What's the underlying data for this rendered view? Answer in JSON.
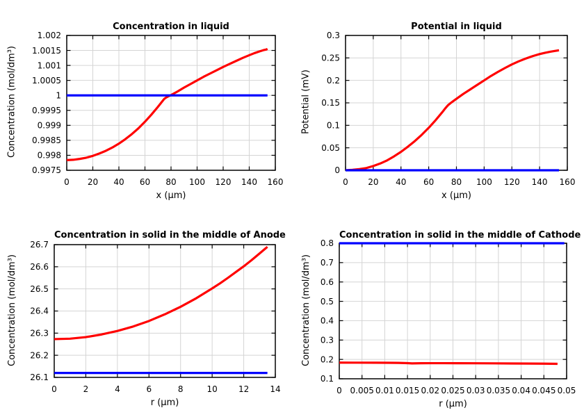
{
  "colors": {
    "background": "#ffffff",
    "frame": "#000000",
    "grid": "#d4d4d4",
    "text": "#000000",
    "series_red": "#ff0000",
    "series_blue": "#0000ff"
  },
  "chart_data": [
    {
      "id": "concentration-in-liquid",
      "type": "line",
      "title": "Concentration in liquid",
      "xlabel": "x (µm)",
      "ylabel": "Concentration (mol/dm³)",
      "xlim": [
        0,
        160
      ],
      "ylim": [
        0.9975,
        1.002
      ],
      "grid": true,
      "legend_position": "none",
      "xticks": {
        "values": [
          0,
          20,
          40,
          60,
          80,
          100,
          120,
          140,
          160
        ],
        "labels": [
          "0",
          "20",
          "40",
          "60",
          "80",
          "100",
          "120",
          "140",
          "160"
        ]
      },
      "yticks": {
        "values": [
          0.9975,
          0.998,
          0.9985,
          0.999,
          0.9995,
          1,
          1.0005,
          1.001,
          1.0015,
          1.002
        ],
        "labels": [
          "0.9975",
          "0.998",
          "0.9985",
          "0.999",
          "0.9995",
          "1",
          "1.0005",
          "1.001",
          "1.0015",
          "1.002"
        ]
      },
      "series": [
        {
          "color": "#ff0000",
          "points": [
            [
              0,
              0.99784
            ],
            [
              5,
              0.99785
            ],
            [
              10,
              0.99788
            ],
            [
              15,
              0.99792
            ],
            [
              20,
              0.99798
            ],
            [
              25,
              0.99806
            ],
            [
              30,
              0.99815
            ],
            [
              35,
              0.99826
            ],
            [
              40,
              0.99839
            ],
            [
              45,
              0.99854
            ],
            [
              50,
              0.99871
            ],
            [
              55,
              0.9989
            ],
            [
              60,
              0.99912
            ],
            [
              65,
              0.99936
            ],
            [
              70,
              0.99962
            ],
            [
              72,
              0.99973
            ],
            [
              74,
              0.99984
            ],
            [
              75,
              0.99989
            ],
            [
              76,
              0.99992
            ],
            [
              78,
              0.99997
            ],
            [
              80,
              1.00001
            ],
            [
              85,
              1.00013
            ],
            [
              90,
              1.00026
            ],
            [
              95,
              1.00038
            ],
            [
              100,
              1.0005
            ],
            [
              105,
              1.00062
            ],
            [
              110,
              1.00073
            ],
            [
              115,
              1.00084
            ],
            [
              120,
              1.00095
            ],
            [
              125,
              1.00105
            ],
            [
              130,
              1.00115
            ],
            [
              135,
              1.00125
            ],
            [
              140,
              1.00134
            ],
            [
              144,
              1.00141
            ],
            [
              148,
              1.00147
            ],
            [
              151,
              1.00151
            ],
            [
              153,
              1.00153
            ],
            [
              154,
              1.00155
            ]
          ]
        },
        {
          "color": "#0000ff",
          "points": [
            [
              0,
              1
            ],
            [
              154,
              1
            ]
          ]
        }
      ]
    },
    {
      "id": "potential-in-liquid",
      "type": "line",
      "title": "Potential in liquid",
      "xlabel": "x (µm)",
      "ylabel": "Potential (mV)",
      "xlim": [
        0,
        160
      ],
      "ylim": [
        0,
        0.3
      ],
      "grid": true,
      "legend_position": "none",
      "xticks": {
        "values": [
          0,
          20,
          40,
          60,
          80,
          100,
          120,
          140,
          160
        ],
        "labels": [
          "0",
          "20",
          "40",
          "60",
          "80",
          "100",
          "120",
          "140",
          "160"
        ]
      },
      "yticks": {
        "values": [
          0,
          0.05,
          0.1,
          0.15,
          0.2,
          0.25,
          0.3
        ],
        "labels": [
          "0",
          "0.05",
          "0.1",
          "0.15",
          "0.2",
          "0.25",
          "0.3"
        ]
      },
      "series": [
        {
          "color": "#ff0000",
          "points": [
            [
              0,
              0
            ],
            [
              5,
              0.001
            ],
            [
              10,
              0.0025
            ],
            [
              15,
              0.005
            ],
            [
              20,
              0.0095
            ],
            [
              25,
              0.015
            ],
            [
              30,
              0.022
            ],
            [
              35,
              0.031
            ],
            [
              40,
              0.041
            ],
            [
              45,
              0.0525
            ],
            [
              50,
              0.065
            ],
            [
              55,
              0.079
            ],
            [
              60,
              0.0945
            ],
            [
              65,
              0.1115
            ],
            [
              70,
              0.13
            ],
            [
              72,
              0.138
            ],
            [
              74,
              0.145
            ],
            [
              76,
              0.15
            ],
            [
              78,
              0.1545
            ],
            [
              80,
              0.159
            ],
            [
              85,
              0.17
            ],
            [
              90,
              0.18
            ],
            [
              95,
              0.19
            ],
            [
              100,
              0.2
            ],
            [
              105,
              0.21
            ],
            [
              110,
              0.219
            ],
            [
              115,
              0.2275
            ],
            [
              120,
              0.2355
            ],
            [
              125,
              0.2425
            ],
            [
              130,
              0.2485
            ],
            [
              135,
              0.254
            ],
            [
              140,
              0.2585
            ],
            [
              144,
              0.2615
            ],
            [
              148,
              0.264
            ],
            [
              151,
              0.2655
            ],
            [
              153,
              0.2665
            ],
            [
              154,
              0.267
            ]
          ]
        },
        {
          "color": "#0000ff",
          "points": [
            [
              0,
              0
            ],
            [
              154,
              0
            ]
          ]
        }
      ]
    },
    {
      "id": "concentration-in-solid-anode",
      "type": "line",
      "title": "Concentration in solid in the middle of Anode",
      "xlabel": "r (µm)",
      "ylabel": "Concentration (mol/dm³)",
      "xlim": [
        0,
        14
      ],
      "ylim": [
        26.1,
        26.7
      ],
      "grid": true,
      "legend_position": "none",
      "xticks": {
        "values": [
          0,
          2,
          4,
          6,
          8,
          10,
          12,
          14
        ],
        "labels": [
          "0",
          "2",
          "4",
          "6",
          "8",
          "10",
          "12",
          "14"
        ]
      },
      "yticks": {
        "values": [
          26.1,
          26.2,
          26.3,
          26.4,
          26.5,
          26.6,
          26.7
        ],
        "labels": [
          "26.1",
          "26.2",
          "26.3",
          "26.4",
          "26.5",
          "26.6",
          "26.7"
        ]
      },
      "series": [
        {
          "color": "#ff0000",
          "points": [
            [
              0,
              26.273
            ],
            [
              1,
              26.275
            ],
            [
              2,
              26.282
            ],
            [
              3,
              26.294
            ],
            [
              4,
              26.31
            ],
            [
              5,
              26.33
            ],
            [
              6,
              26.355
            ],
            [
              7,
              26.385
            ],
            [
              8,
              26.419
            ],
            [
              9,
              26.458
            ],
            [
              10,
              26.502
            ],
            [
              10.5,
              26.525
            ],
            [
              11,
              26.55
            ],
            [
              11.5,
              26.576
            ],
            [
              12,
              26.602
            ],
            [
              12.5,
              26.63
            ],
            [
              13,
              26.66
            ],
            [
              13.5,
              26.69
            ]
          ]
        },
        {
          "color": "#0000ff",
          "points": [
            [
              0,
              26.12
            ],
            [
              13.5,
              26.12
            ]
          ]
        }
      ]
    },
    {
      "id": "concentration-in-solid-cathode",
      "type": "line",
      "title": "Concentration in solid in the middle of Cathode",
      "xlabel": "r (µm)",
      "ylabel": "Concentration (mol/dm³)",
      "xlim": [
        0,
        0.05
      ],
      "ylim": [
        0.1,
        0.8
      ],
      "grid": true,
      "legend_position": "none",
      "xticks": {
        "values": [
          0,
          0.005,
          0.01,
          0.015,
          0.02,
          0.025,
          0.03,
          0.035,
          0.04,
          0.045,
          0.05
        ],
        "labels": [
          "0",
          "0.005",
          "0.01",
          "0.015",
          "0.02",
          "0.025",
          "0.03",
          "0.035",
          "0.04",
          "0.045",
          "0.05"
        ]
      },
      "yticks": {
        "values": [
          0.1,
          0.2,
          0.3,
          0.4,
          0.5,
          0.6,
          0.7,
          0.8
        ],
        "labels": [
          "0.1",
          "0.2",
          "0.3",
          "0.4",
          "0.5",
          "0.6",
          "0.7",
          "0.8"
        ]
      },
      "series": [
        {
          "color": "#ff0000",
          "points": [
            [
              0,
              0.1835
            ],
            [
              0.004,
              0.1832
            ],
            [
              0.008,
              0.1829
            ],
            [
              0.011,
              0.1826
            ],
            [
              0.013,
              0.1822
            ],
            [
              0.015,
              0.1808
            ],
            [
              0.016,
              0.1795
            ],
            [
              0.017,
              0.1798
            ],
            [
              0.018,
              0.1803
            ],
            [
              0.02,
              0.1806
            ],
            [
              0.023,
              0.1806
            ],
            [
              0.026,
              0.1804
            ],
            [
              0.03,
              0.18
            ],
            [
              0.034,
              0.1796
            ],
            [
              0.038,
              0.1791
            ],
            [
              0.042,
              0.1786
            ],
            [
              0.045,
              0.1781
            ],
            [
              0.048,
              0.1773
            ]
          ]
        },
        {
          "color": "#0000ff",
          "points": [
            [
              0,
              0.8
            ],
            [
              0.0495,
              0.8
            ]
          ]
        }
      ]
    }
  ]
}
